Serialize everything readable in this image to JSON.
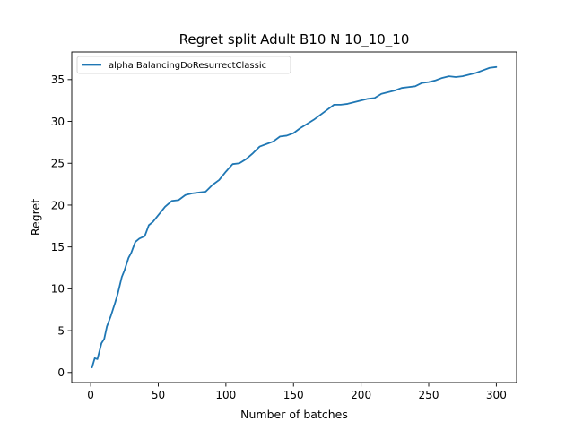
{
  "chart_data": {
    "type": "line",
    "title": "Regret split Adult B10 N 10_10_10",
    "xlabel": "Number of batches",
    "ylabel": "Regret",
    "xlim": [
      -14,
      315
    ],
    "ylim": [
      -1.2,
      38.3
    ],
    "xticks": [
      0,
      50,
      100,
      150,
      200,
      250,
      300
    ],
    "yticks": [
      0,
      5,
      10,
      15,
      20,
      25,
      30,
      35
    ],
    "grid": false,
    "legend_position": "top-left",
    "colors": {
      "series": "#1f77b4",
      "axes": "#000000",
      "background": "#ffffff"
    },
    "series": [
      {
        "name": "alpha BalancingDoResurrectClassic",
        "x": [
          1,
          3,
          5,
          8,
          10,
          12,
          15,
          18,
          20,
          23,
          25,
          28,
          30,
          33,
          36,
          40,
          43,
          46,
          50,
          55,
          60,
          65,
          70,
          75,
          80,
          85,
          90,
          95,
          100,
          105,
          110,
          115,
          120,
          125,
          130,
          135,
          140,
          145,
          150,
          155,
          160,
          165,
          170,
          175,
          180,
          185,
          190,
          195,
          200,
          205,
          210,
          215,
          220,
          225,
          230,
          235,
          240,
          245,
          250,
          255,
          260,
          265,
          270,
          275,
          280,
          285,
          290,
          295,
          300
        ],
        "values": [
          0.6,
          1.7,
          1.6,
          3.5,
          4.0,
          5.5,
          6.8,
          8.3,
          9.4,
          11.4,
          12.2,
          13.7,
          14.3,
          15.6,
          16.0,
          16.3,
          17.6,
          18.0,
          18.8,
          19.8,
          20.5,
          20.6,
          21.2,
          21.4,
          21.5,
          21.6,
          22.4,
          23.0,
          24.0,
          24.9,
          25.0,
          25.5,
          26.2,
          27.0,
          27.3,
          27.6,
          28.2,
          28.3,
          28.6,
          29.2,
          29.7,
          30.2,
          30.8,
          31.4,
          32.0,
          32.0,
          32.1,
          32.3,
          32.5,
          32.7,
          32.8,
          33.3,
          33.5,
          33.7,
          34.0,
          34.1,
          34.2,
          34.6,
          34.7,
          34.9,
          35.2,
          35.4,
          35.3,
          35.4,
          35.6,
          35.8,
          36.1,
          36.4,
          36.5
        ]
      }
    ]
  }
}
